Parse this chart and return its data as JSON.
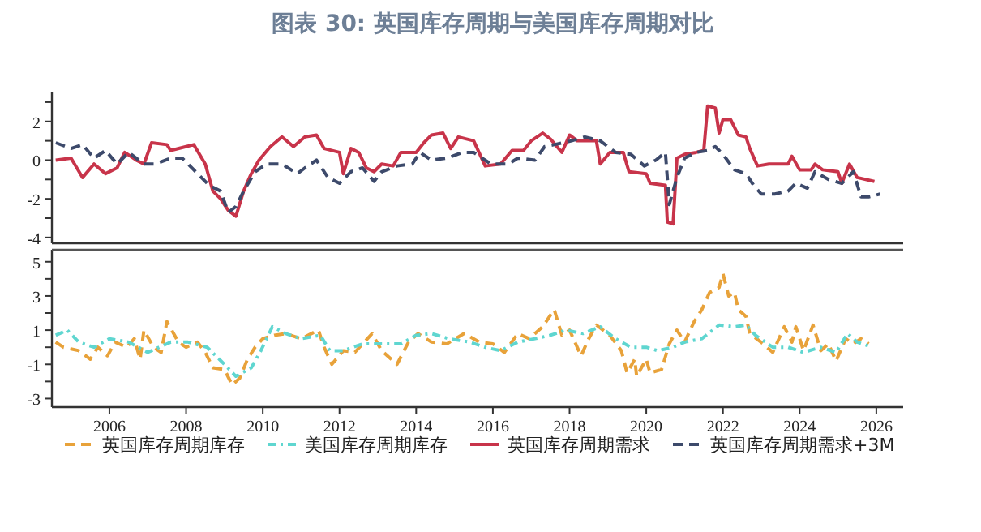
{
  "chart_data": [
    {
      "type": "line",
      "title": "图表 30: 英国库存周期与美国库存周期对比",
      "xlim": [
        2004.5,
        2026.7
      ],
      "ylim": [
        -4.3,
        3.5
      ],
      "yticks": [
        -4,
        {
          "value": -3,
          "label": null
        },
        -2,
        {
          "value": -1,
          "label": null
        },
        0,
        {
          "value": 1,
          "label": null
        },
        2,
        {
          "value": 3,
          "label": null
        }
      ],
      "tick_labels": "y",
      "grid": false,
      "legend": "bottom",
      "marker": "none",
      "series": [
        {
          "name": "英国库存周期需求",
          "color": "#c8344a",
          "line_style": "solid",
          "x": [
            2004.6,
            2005.0,
            2005.3,
            2005.6,
            2005.9,
            2006.2,
            2006.4,
            2006.7,
            2006.9,
            2007.1,
            2007.5,
            2007.6,
            2008.0,
            2008.2,
            2008.5,
            2008.7,
            2008.9,
            2009.1,
            2009.3,
            2009.5,
            2009.7,
            2009.9,
            2010.2,
            2010.5,
            2010.8,
            2011.1,
            2011.4,
            2011.6,
            2012.0,
            2012.1,
            2012.3,
            2012.5,
            2012.7,
            2012.9,
            2013.1,
            2013.4,
            2013.6,
            2014.0,
            2014.2,
            2014.4,
            2014.7,
            2014.9,
            2015.1,
            2015.5,
            2015.8,
            2016.2,
            2016.5,
            2016.8,
            2017.0,
            2017.3,
            2017.5,
            2017.8,
            2018.0,
            2018.2,
            2018.7,
            2018.8,
            2019.05,
            2019.4,
            2019.55,
            2020.0,
            2020.1,
            2020.5,
            2020.55,
            2020.7,
            2020.8,
            2021.0,
            2021.3,
            2021.5,
            2021.6,
            2021.8,
            2021.9,
            2022.0,
            2022.2,
            2022.4,
            2022.6,
            2022.7,
            2022.9,
            2023.2,
            2023.7,
            2023.8,
            2024.0,
            2024.3,
            2024.4,
            2024.6,
            2025.0,
            2025.1,
            2025.3,
            2025.5,
            2025.95
          ],
          "values": [
            0,
            0.1,
            -0.9,
            -0.2,
            -0.7,
            -0.4,
            0.4,
            0,
            -0.2,
            0.9,
            0.8,
            0.5,
            0.7,
            0.8,
            -0.2,
            -1.6,
            -2.0,
            -2.6,
            -2.9,
            -1.6,
            -0.7,
            0,
            0.7,
            1.2,
            0.7,
            1.2,
            1.3,
            0.6,
            0.4,
            -0.7,
            0.6,
            0.4,
            -0.4,
            -0.6,
            -0.2,
            -0.3,
            0.4,
            0.4,
            0.9,
            1.3,
            1.4,
            0.6,
            1.2,
            1.0,
            -0.3,
            -0.2,
            0.5,
            0.5,
            1.0,
            1.4,
            1.1,
            0.4,
            1.3,
            1.0,
            1.0,
            -0.2,
            0.4,
            0.4,
            -0.6,
            -0.7,
            -1.2,
            -1.3,
            -3.2,
            -3.3,
            0.1,
            0.3,
            0.4,
            0.5,
            2.8,
            2.7,
            1.4,
            2.1,
            2.1,
            1.3,
            1.2,
            0.6,
            -0.3,
            -0.2,
            -0.2,
            0.2,
            -0.5,
            -0.5,
            -0.2,
            -0.5,
            -0.6,
            -1.2,
            -0.2,
            -0.9,
            -1.1
          ]
        },
        {
          "name": "英国库存周期需求+3M",
          "color": "#3d4a6b",
          "line_style": "dashed",
          "x": [
            2004.6,
            2005.0,
            2005.3,
            2005.6,
            2005.9,
            2006.2,
            2006.5,
            2006.9,
            2007.2,
            2007.6,
            2007.9,
            2008.3,
            2008.6,
            2008.9,
            2009.1,
            2009.3,
            2009.5,
            2009.8,
            2010.1,
            2010.5,
            2010.9,
            2011.1,
            2011.4,
            2011.7,
            2012.0,
            2012.3,
            2012.6,
            2012.9,
            2013.1,
            2013.5,
            2013.9,
            2014.1,
            2014.4,
            2014.8,
            2015.2,
            2015.5,
            2015.95,
            2016.4,
            2016.65,
            2017.1,
            2017.35,
            2017.6,
            2018.05,
            2018.4,
            2018.8,
            2019.2,
            2019.6,
            2019.95,
            2020.25,
            2020.5,
            2020.6,
            2020.8,
            2021.0,
            2021.3,
            2021.6,
            2021.8,
            2022.0,
            2022.3,
            2022.6,
            2022.8,
            2023.0,
            2023.35,
            2023.7,
            2023.9,
            2024.2,
            2024.4,
            2024.75,
            2025.1,
            2025.4,
            2025.6,
            2025.8,
            2026.1
          ],
          "values": [
            0.9,
            0.6,
            0.8,
            0.1,
            0.5,
            -0.2,
            0.4,
            -0.2,
            -0.2,
            0.1,
            0.1,
            -0.7,
            -1.3,
            -1.6,
            -2.7,
            -2.4,
            -1.6,
            -0.6,
            -0.2,
            -0.2,
            -0.7,
            -0.4,
            0,
            -0.9,
            -1.2,
            -0.6,
            -0.4,
            -1.1,
            -0.6,
            -0.3,
            -0.2,
            0.4,
            0,
            0.1,
            0.4,
            0.4,
            -0.2,
            -0.2,
            0.1,
            0,
            0.7,
            0.8,
            1.0,
            1.2,
            1.0,
            0.4,
            0.3,
            -0.3,
            0,
            0.4,
            -2.3,
            -0.9,
            0.1,
            0.4,
            0.5,
            0.7,
            0.3,
            -0.5,
            -0.7,
            -1.3,
            -1.75,
            -1.75,
            -1.6,
            -1.2,
            -1.45,
            -0.6,
            -1.0,
            -1.2,
            -0.6,
            -1.9,
            -1.9,
            -1.75
          ]
        }
      ]
    },
    {
      "type": "line",
      "xlim": [
        2004.5,
        2026.7
      ],
      "xticks": [
        2006,
        2008,
        2010,
        2012,
        2014,
        2016,
        2018,
        2020,
        2022,
        2024,
        2026
      ],
      "ylim": [
        -3.5,
        5.7
      ],
      "yticks": [
        -3,
        {
          "value": -2,
          "label": null
        },
        -1,
        {
          "value": 0,
          "label": null
        },
        1,
        {
          "value": 2,
          "label": null
        },
        3,
        {
          "value": 4,
          "label": null
        },
        5
      ],
      "grid": false,
      "legend": "bottom",
      "marker": "none",
      "series": [
        {
          "name": "英国库存周期库存",
          "color": "#e8a23a",
          "line_style": "dashed",
          "x": [
            2004.6,
            2004.8,
            2005.2,
            2005.5,
            2005.7,
            2005.95,
            2006.15,
            2006.45,
            2006.65,
            2006.8,
            2006.9,
            2007.15,
            2007.35,
            2007.5,
            2007.8,
            2008.0,
            2008.3,
            2008.5,
            2008.7,
            2009.0,
            2009.2,
            2009.4,
            2009.6,
            2009.8,
            2010.0,
            2010.3,
            2010.6,
            2011.0,
            2011.45,
            2011.6,
            2011.8,
            2012.1,
            2012.4,
            2012.85,
            2013.1,
            2013.5,
            2013.8,
            2014.05,
            2014.4,
            2014.8,
            2015.25,
            2015.65,
            2016.0,
            2016.3,
            2016.65,
            2016.95,
            2017.3,
            2017.6,
            2017.8,
            2018.0,
            2018.3,
            2018.5,
            2018.7,
            2019.05,
            2019.35,
            2019.5,
            2019.7,
            2019.75,
            2020.0,
            2020.1,
            2020.4,
            2020.6,
            2020.8,
            2021.0,
            2021.25,
            2021.45,
            2021.65,
            2021.9,
            2022.0,
            2022.15,
            2022.3,
            2022.4,
            2022.6,
            2022.7,
            2023.05,
            2023.3,
            2023.6,
            2023.8,
            2023.9,
            2024.1,
            2024.35,
            2024.55,
            2024.75,
            2024.95,
            2025.2,
            2025.4,
            2025.6,
            2025.8
          ],
          "values": [
            0.3,
            0,
            -0.2,
            -0.7,
            0,
            -0.5,
            0.3,
            0,
            0.5,
            -0.7,
            1.0,
            0,
            -0.3,
            1.5,
            0.3,
            0,
            0.3,
            -0.3,
            -1.2,
            -1.3,
            -2.2,
            -1.8,
            -0.7,
            0,
            0.5,
            0.7,
            0.8,
            0.5,
            1.0,
            0,
            -1.0,
            -0.2,
            -0.3,
            0.8,
            -0.2,
            -1.0,
            0.3,
            0.8,
            0.3,
            0.2,
            0.8,
            0.3,
            0.2,
            -0.3,
            0.8,
            0.5,
            1.2,
            2.2,
            0.7,
            1.0,
            -0.5,
            0.5,
            1.3,
            0.7,
            -0.2,
            -1.5,
            -0.7,
            -1.7,
            -0.7,
            -1.5,
            -1.3,
            0.2,
            1.0,
            0.3,
            1.5,
            2.2,
            3.2,
            3.5,
            4.3,
            3.0,
            3.2,
            2.2,
            1.8,
            0.8,
            0.2,
            -0.3,
            1.2,
            0.3,
            1.2,
            -0.2,
            1.3,
            -0.2,
            0.2,
            -0.8,
            0.5,
            0.2,
            0.5,
            0.2
          ]
        },
        {
          "name": "美国库存周期库存",
          "color": "#5fd6d0",
          "line_style": "dotted",
          "x": [
            2004.6,
            2004.9,
            2005.2,
            2005.6,
            2006.0,
            2006.5,
            2007.0,
            2007.6,
            2008.05,
            2008.55,
            2009.0,
            2009.3,
            2009.7,
            2009.95,
            2010.25,
            2010.6,
            2011.0,
            2011.5,
            2011.75,
            2012.1,
            2012.6,
            2013.0,
            2013.6,
            2014.0,
            2014.4,
            2014.85,
            2015.4,
            2015.8,
            2016.2,
            2016.65,
            2017.1,
            2017.5,
            2017.9,
            2018.35,
            2018.8,
            2019.2,
            2019.6,
            2020.0,
            2020.3,
            2020.7,
            2021.0,
            2021.45,
            2021.9,
            2022.3,
            2022.6,
            2022.85,
            2023.3,
            2023.7,
            2024.1,
            2024.55,
            2024.95,
            2025.25,
            2025.5,
            2025.9
          ],
          "values": [
            0.7,
            1.0,
            0.3,
            0,
            0.5,
            0.3,
            -0.3,
            0.3,
            0.3,
            0,
            -1.0,
            -1.7,
            -1.2,
            -0.2,
            1.2,
            0.8,
            0.5,
            0.7,
            -0.2,
            -0.2,
            0.2,
            0.2,
            0.2,
            0.7,
            0.8,
            0.5,
            0.3,
            0,
            -0.2,
            0.3,
            0.5,
            0.7,
            1.0,
            0.8,
            1.2,
            0.5,
            0,
            0,
            -0.2,
            0,
            0.3,
            0.5,
            1.3,
            1.2,
            1.3,
            0.7,
            0,
            0,
            -0.3,
            0,
            -0.3,
            0.8,
            0.3,
            0
          ]
        }
      ]
    }
  ]
}
